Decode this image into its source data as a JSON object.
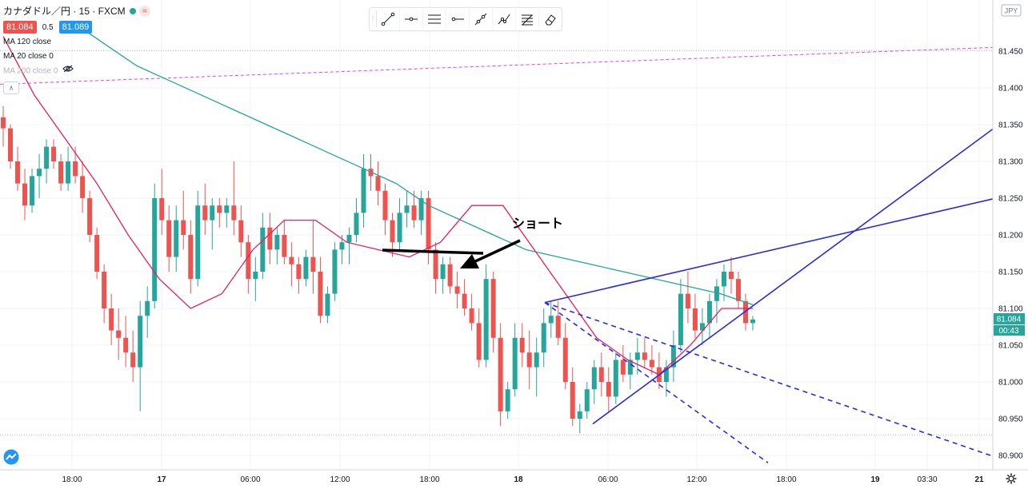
{
  "legend": {
    "symbol": "カナダドル／円 · 15 · FXCM",
    "approx_badge": "≈",
    "sell_price": "81.084",
    "spread": "0.5",
    "buy_price": "81.089",
    "ma_lines": [
      "MA 120 close",
      "MA 20 close 0",
      "MA 200 close 0"
    ]
  },
  "toolbar": {
    "tools": [
      "trend-line-icon",
      "horizontal-ray-icon",
      "parallel-channel-icon",
      "ray-icon",
      "extended-line-icon",
      "path-icon",
      "fib-retracement-icon",
      "eraser-icon"
    ]
  },
  "annotation": {
    "text": "ショート"
  },
  "price_axis": {
    "currency": "JPY",
    "labels": [
      "81.450",
      "81.400",
      "81.350",
      "81.300",
      "81.250",
      "81.200",
      "81.150",
      "81.100",
      "81.050",
      "81.000",
      "80.950",
      "80.900"
    ],
    "current_price": "81.084",
    "countdown": "00:43"
  },
  "time_axis": {
    "labels": [
      "18:00",
      "17",
      "06:00",
      "12:00",
      "18:00",
      "18",
      "06:00",
      "12:00",
      "18:00",
      "19",
      "03:30",
      "21"
    ]
  },
  "colors": {
    "up": "#26a69a",
    "down": "#ef5350",
    "ma120": "#26a69a",
    "ma20": "#e91e63",
    "drawing": "#2b2be0",
    "hline": "#e040fb"
  },
  "chart_data": {
    "type": "candlestick",
    "symbol": "CADJPY",
    "interval": "15",
    "ylim": [
      80.885,
      81.49
    ],
    "candles": [
      [
        81.36,
        81.375,
        81.32,
        81.345
      ],
      [
        81.345,
        81.35,
        81.29,
        81.3
      ],
      [
        81.3,
        81.32,
        81.26,
        81.27
      ],
      [
        81.27,
        81.29,
        81.22,
        81.24
      ],
      [
        81.24,
        81.29,
        81.23,
        81.28
      ],
      [
        81.28,
        81.31,
        81.25,
        81.29
      ],
      [
        81.29,
        81.33,
        81.27,
        81.32
      ],
      [
        81.32,
        81.33,
        81.29,
        81.3
      ],
      [
        81.3,
        81.31,
        81.26,
        81.27
      ],
      [
        81.27,
        81.32,
        81.26,
        81.3
      ],
      [
        81.3,
        81.32,
        81.27,
        81.28
      ],
      [
        81.28,
        81.3,
        81.23,
        81.25
      ],
      [
        81.25,
        81.26,
        81.19,
        81.2
      ],
      [
        81.2,
        81.21,
        81.14,
        81.15
      ],
      [
        81.15,
        81.16,
        81.08,
        81.1
      ],
      [
        81.1,
        81.12,
        81.05,
        81.07
      ],
      [
        81.07,
        81.1,
        81.03,
        81.06
      ],
      [
        81.06,
        81.09,
        81.02,
        81.04
      ],
      [
        81.04,
        81.07,
        81.0,
        81.02
      ],
      [
        81.02,
        81.11,
        80.96,
        81.09
      ],
      [
        81.09,
        81.13,
        81.06,
        81.11
      ],
      [
        81.11,
        81.27,
        81.1,
        81.25
      ],
      [
        81.25,
        81.29,
        81.2,
        81.22
      ],
      [
        81.22,
        81.24,
        81.15,
        81.17
      ],
      [
        81.17,
        81.24,
        81.15,
        81.22
      ],
      [
        81.22,
        81.26,
        81.18,
        81.2
      ],
      [
        81.2,
        81.22,
        81.12,
        81.14
      ],
      [
        81.14,
        81.26,
        81.13,
        81.24
      ],
      [
        81.24,
        81.27,
        81.2,
        81.22
      ],
      [
        81.22,
        81.25,
        81.18,
        81.24
      ],
      [
        81.24,
        81.25,
        81.21,
        81.23
      ],
      [
        81.23,
        81.25,
        81.21,
        81.24
      ],
      [
        81.24,
        81.3,
        81.2,
        81.22
      ],
      [
        81.22,
        81.24,
        81.17,
        81.19
      ],
      [
        81.19,
        81.2,
        81.12,
        81.14
      ],
      [
        81.14,
        81.17,
        81.11,
        81.15
      ],
      [
        81.15,
        81.23,
        81.14,
        81.21
      ],
      [
        81.21,
        81.23,
        81.16,
        81.18
      ],
      [
        81.18,
        81.21,
        81.16,
        81.2
      ],
      [
        81.2,
        81.22,
        81.16,
        81.17
      ],
      [
        81.17,
        81.19,
        81.13,
        81.16
      ],
      [
        81.16,
        81.17,
        81.12,
        81.14
      ],
      [
        81.14,
        81.18,
        81.13,
        81.17
      ],
      [
        81.17,
        81.22,
        81.12,
        81.15
      ],
      [
        81.15,
        81.17,
        81.08,
        81.09
      ],
      [
        81.09,
        81.13,
        81.08,
        81.12
      ],
      [
        81.12,
        81.19,
        81.11,
        81.18
      ],
      [
        81.18,
        81.2,
        81.16,
        81.19
      ],
      [
        81.19,
        81.21,
        81.16,
        81.2
      ],
      [
        81.2,
        81.25,
        81.19,
        81.23
      ],
      [
        81.23,
        81.31,
        81.21,
        81.29
      ],
      [
        81.29,
        81.31,
        81.26,
        81.28
      ],
      [
        81.28,
        81.3,
        81.24,
        81.26
      ],
      [
        81.26,
        81.27,
        81.2,
        81.22
      ],
      [
        81.22,
        81.23,
        81.17,
        81.19
      ],
      [
        81.19,
        81.25,
        81.18,
        81.23
      ],
      [
        81.23,
        81.26,
        81.21,
        81.24
      ],
      [
        81.24,
        81.26,
        81.21,
        81.22
      ],
      [
        81.22,
        81.26,
        81.2,
        81.25
      ],
      [
        81.25,
        81.26,
        81.16,
        81.18
      ],
      [
        81.18,
        81.19,
        81.12,
        81.14
      ],
      [
        81.14,
        81.17,
        81.12,
        81.16
      ],
      [
        81.16,
        81.17,
        81.12,
        81.13
      ],
      [
        81.13,
        81.15,
        81.1,
        81.12
      ],
      [
        81.12,
        81.14,
        81.09,
        81.1
      ],
      [
        81.1,
        81.12,
        81.07,
        81.08
      ],
      [
        81.08,
        81.1,
        81.02,
        81.03
      ],
      [
        81.03,
        81.16,
        81.02,
        81.14
      ],
      [
        81.14,
        81.15,
        81.04,
        81.06
      ],
      [
        81.06,
        81.08,
        80.94,
        80.96
      ],
      [
        80.96,
        81.0,
        80.95,
        80.99
      ],
      [
        80.99,
        81.08,
        80.98,
        81.06
      ],
      [
        81.06,
        81.08,
        81.02,
        81.04
      ],
      [
        81.04,
        81.07,
        80.99,
        81.02
      ],
      [
        81.02,
        81.06,
        80.98,
        81.04
      ],
      [
        81.04,
        81.1,
        81.02,
        81.08
      ],
      [
        81.08,
        81.11,
        81.06,
        81.09
      ],
      [
        81.09,
        81.11,
        81.05,
        81.06
      ],
      [
        81.06,
        81.08,
        80.99,
        81.0
      ],
      [
        81.0,
        81.02,
        80.94,
        80.95
      ],
      [
        80.95,
        80.97,
        80.93,
        80.96
      ],
      [
        80.96,
        81.0,
        80.95,
        80.99
      ],
      [
        80.99,
        81.03,
        80.97,
        81.02
      ],
      [
        81.02,
        81.04,
        80.98,
        81.0
      ],
      [
        81.0,
        81.02,
        80.96,
        80.98
      ],
      [
        80.98,
        81.04,
        80.97,
        81.03
      ],
      [
        81.03,
        81.05,
        81.0,
        81.01
      ],
      [
        81.01,
        81.04,
        80.99,
        81.03
      ],
      [
        81.03,
        81.06,
        81.01,
        81.04
      ],
      [
        81.04,
        81.06,
        81.02,
        81.03
      ],
      [
        81.03,
        81.05,
        81.01,
        81.02
      ],
      [
        81.02,
        81.04,
        80.99,
        81.0
      ],
      [
        81.0,
        81.03,
        80.98,
        81.02
      ],
      [
        81.02,
        81.07,
        81.0,
        81.05
      ],
      [
        81.05,
        81.14,
        81.04,
        81.12
      ],
      [
        81.12,
        81.15,
        81.08,
        81.1
      ],
      [
        81.1,
        81.12,
        81.06,
        81.07
      ],
      [
        81.07,
        81.1,
        81.05,
        81.08
      ],
      [
        81.08,
        81.12,
        81.06,
        81.11
      ],
      [
        81.11,
        81.14,
        81.08,
        81.13
      ],
      [
        81.13,
        81.16,
        81.11,
        81.15
      ],
      [
        81.15,
        81.17,
        81.12,
        81.14
      ],
      [
        81.14,
        81.15,
        81.1,
        81.11
      ],
      [
        81.11,
        81.12,
        81.07,
        81.08
      ],
      [
        81.08,
        81.09,
        81.07,
        81.085
      ]
    ],
    "moving_averages": [
      {
        "name": "MA 120 close",
        "color": "#26a69a",
        "points": [
          [
            0,
            81.49
          ],
          [
            1,
            81.46
          ],
          [
            2,
            81.43
          ],
          [
            3,
            81.41
          ],
          [
            4,
            81.39
          ],
          [
            5,
            81.37
          ],
          [
            6,
            81.35
          ],
          [
            7,
            81.33
          ],
          [
            8,
            81.31
          ],
          [
            9,
            81.29
          ],
          [
            10,
            81.27
          ],
          [
            11,
            81.24
          ],
          [
            12,
            81.22
          ],
          [
            13,
            81.2
          ],
          [
            14,
            81.18
          ],
          [
            15,
            81.17
          ],
          [
            16,
            81.16
          ],
          [
            17,
            81.15
          ],
          [
            18,
            81.14
          ],
          [
            19,
            81.13
          ],
          [
            20,
            81.12
          ],
          [
            21,
            81.105
          ]
        ]
      },
      {
        "name": "MA 20 close 0",
        "color": "#e91e63",
        "points": [
          [
            0,
            81.47
          ],
          [
            1,
            81.39
          ],
          [
            2,
            81.33
          ],
          [
            3,
            81.27
          ],
          [
            4,
            81.2
          ],
          [
            5,
            81.14
          ],
          [
            6,
            81.1
          ],
          [
            7,
            81.12
          ],
          [
            8,
            81.18
          ],
          [
            9,
            81.22
          ],
          [
            10,
            81.22
          ],
          [
            11,
            81.19
          ],
          [
            12,
            81.18
          ],
          [
            13,
            81.17
          ],
          [
            14,
            81.19
          ],
          [
            15,
            81.24
          ],
          [
            16,
            81.24
          ],
          [
            17,
            81.18
          ],
          [
            18,
            81.12
          ],
          [
            19,
            81.06
          ],
          [
            20,
            81.03
          ],
          [
            21,
            81.01
          ],
          [
            22,
            81.05
          ],
          [
            23,
            81.1
          ],
          [
            24,
            81.1
          ]
        ]
      }
    ],
    "horizontal_lines": [
      {
        "style": "dashed",
        "color": "#e040fb",
        "from": 81.405,
        "to": 81.455
      },
      {
        "style": "dotted",
        "color": "#b2b5be",
        "value": 81.451
      },
      {
        "style": "dotted",
        "color": "#b2b5be",
        "value": 80.928
      }
    ],
    "drawings": [
      {
        "type": "trend-line",
        "style": "solid",
        "color": "#2b2be0",
        "from": [
          0,
          81.108
        ],
        "to": [
          1,
          81.249
        ]
      },
      {
        "type": "trend-line",
        "style": "solid",
        "color": "#2b2be0",
        "from": [
          0,
          80.943
        ],
        "to": [
          1,
          81.344
        ]
      },
      {
        "type": "trend-line",
        "style": "dashed",
        "color": "#2b2be0",
        "from": [
          0,
          81.108
        ],
        "to": [
          1,
          80.899
        ]
      },
      {
        "type": "trend-line",
        "style": "dashed",
        "color": "#2b2be0",
        "from": [
          0,
          81.108
        ],
        "to": [
          1,
          80.89
        ]
      },
      {
        "type": "arrow",
        "color": "#000000"
      }
    ]
  }
}
